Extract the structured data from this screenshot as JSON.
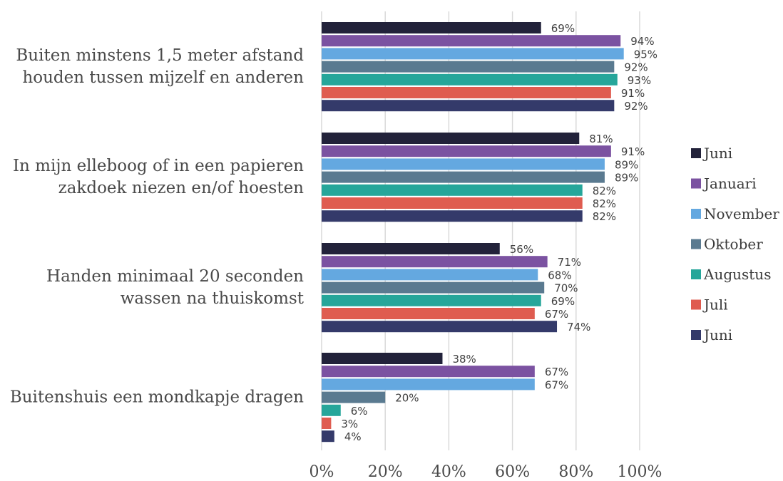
{
  "chart_data": {
    "type": "bar",
    "orientation": "horizontal",
    "categories": [
      [
        "Buiten minstens 1,5 meter afstand",
        "houden tussen mijzelf en anderen"
      ],
      [
        "In mijn elleboog of in een papieren",
        "zakdoek niezen en/of hoesten"
      ],
      [
        "Handen minimaal 20 seconden",
        "wassen na thuiskomst"
      ],
      [
        "Buitenshuis een mondkapje dragen"
      ]
    ],
    "series": [
      {
        "name": "Juni",
        "color": "#22223a",
        "values": [
          69,
          81,
          56,
          38
        ]
      },
      {
        "name": "Januari",
        "color": "#7b52a1",
        "values": [
          94,
          91,
          71,
          67
        ]
      },
      {
        "name": "November",
        "color": "#64a8e0",
        "values": [
          95,
          89,
          68,
          67
        ]
      },
      {
        "name": "Oktober",
        "color": "#5a7a90",
        "values": [
          92,
          89,
          70,
          20
        ]
      },
      {
        "name": "Augustus",
        "color": "#26a69a",
        "values": [
          93,
          82,
          69,
          6
        ]
      },
      {
        "name": "Juli",
        "color": "#df5c50",
        "values": [
          91,
          82,
          67,
          3
        ]
      },
      {
        "name": "Juni",
        "color": "#343a6a",
        "values": [
          92,
          82,
          74,
          4
        ]
      }
    ],
    "value_labels": [
      [
        "69%",
        "81%",
        "56%",
        "38%"
      ],
      [
        "94%",
        "91%",
        "71%",
        "67%"
      ],
      [
        "95%",
        "89%",
        "68%",
        "67%"
      ],
      [
        "92%",
        "89%",
        "70%",
        "20%"
      ],
      [
        "93%",
        "82%",
        "69%",
        "6%"
      ],
      [
        "91%",
        "82%",
        "67%",
        "3%"
      ],
      [
        "92%",
        "82%",
        "74%",
        "4%"
      ]
    ],
    "xticks": [
      "0%",
      "20%",
      "40%",
      "60%",
      "80%",
      "100%"
    ],
    "xlim": [
      0,
      100
    ],
    "grid": true,
    "legend_position": "right",
    "title": "",
    "xlabel": "",
    "ylabel": ""
  }
}
